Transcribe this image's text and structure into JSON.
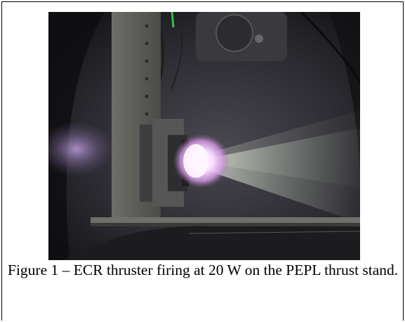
{
  "figure": {
    "caption": "Figure 1 – ECR thruster firing at 20 W on the PEPL thrust stand.",
    "photo_subject": "ecr-thruster-firing-photo"
  }
}
